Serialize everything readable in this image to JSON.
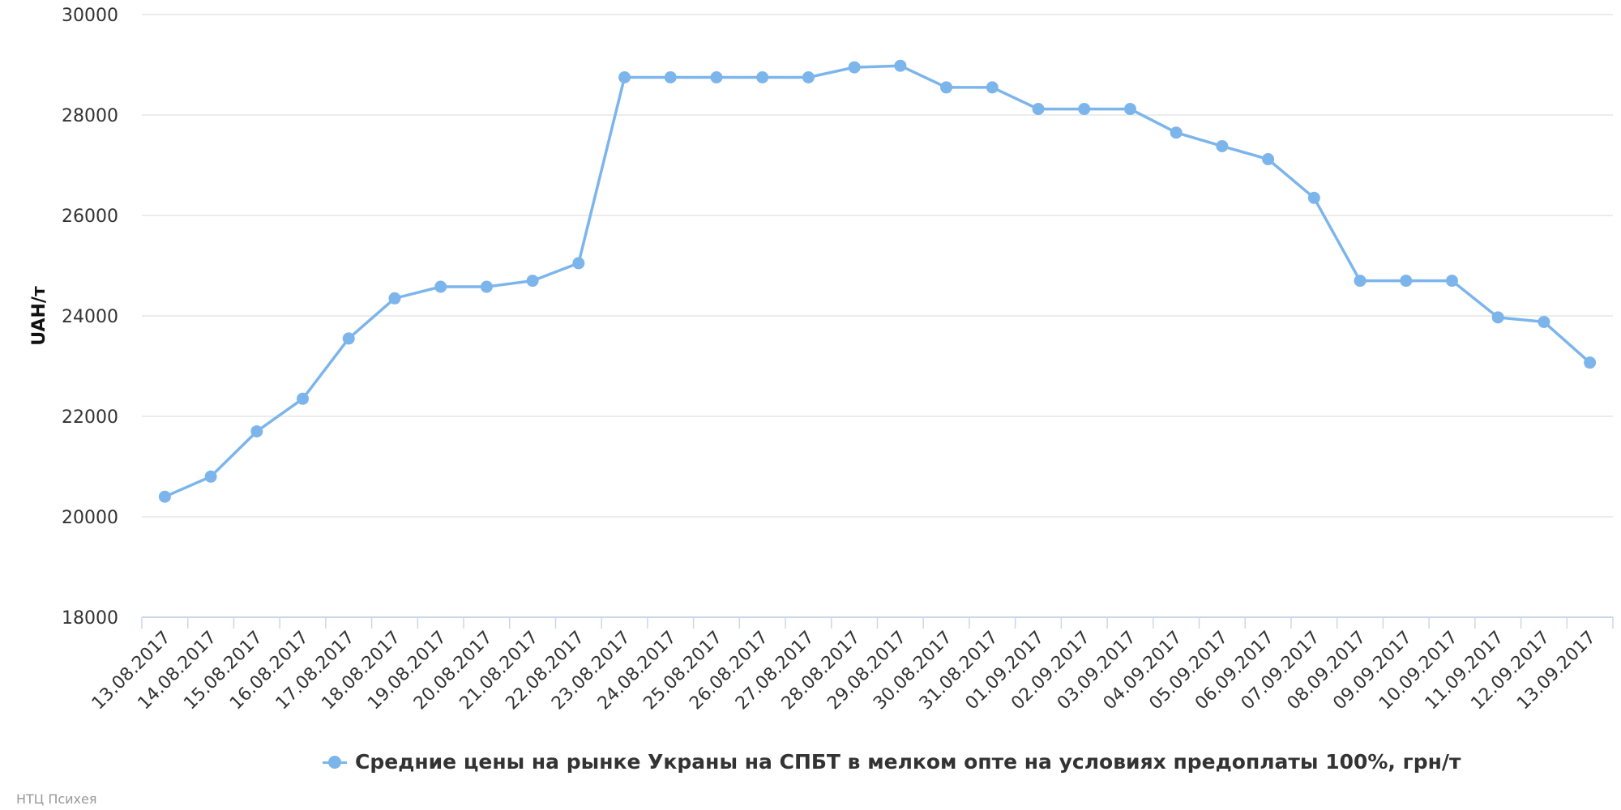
{
  "chart_data": {
    "type": "line",
    "title": "",
    "xlabel": "",
    "ylabel": "UAH/т",
    "ylim": [
      18000,
      30000
    ],
    "yticks": [
      18000,
      20000,
      22000,
      24000,
      26000,
      28000,
      30000
    ],
    "grid": true,
    "legend_position": "bottom-center",
    "categories": [
      "13.08.2017",
      "14.08.2017",
      "15.08.2017",
      "16.08.2017",
      "17.08.2017",
      "18.08.2017",
      "19.08.2017",
      "20.08.2017",
      "21.08.2017",
      "22.08.2017",
      "23.08.2017",
      "24.08.2017",
      "25.08.2017",
      "26.08.2017",
      "27.08.2017",
      "28.08.2017",
      "29.08.2017",
      "30.08.2017",
      "31.08.2017",
      "01.09.2017",
      "02.09.2017",
      "03.09.2017",
      "04.09.2017",
      "05.09.2017",
      "06.09.2017",
      "07.09.2017",
      "08.09.2017",
      "09.09.2017",
      "10.09.2017",
      "11.09.2017",
      "12.09.2017",
      "13.09.2017"
    ],
    "series": [
      {
        "name": "Средние цены на рынке Украны на СПБТ в мелком опте на условиях предоплаты 100%, грн/т",
        "color": "#7cb5ec",
        "values": [
          20400,
          20800,
          21700,
          22350,
          23550,
          24350,
          24580,
          24580,
          24700,
          25050,
          28750,
          28750,
          28750,
          28750,
          28750,
          28950,
          28980,
          28550,
          28550,
          28120,
          28120,
          28120,
          27650,
          27380,
          27120,
          26350,
          24700,
          24700,
          24700,
          23970,
          23880,
          23070
        ]
      }
    ]
  },
  "credits": "НТЦ Психея",
  "colors": {
    "grid": "#e6e6e6",
    "axis": "#ccd6eb",
    "text": "#333333"
  }
}
